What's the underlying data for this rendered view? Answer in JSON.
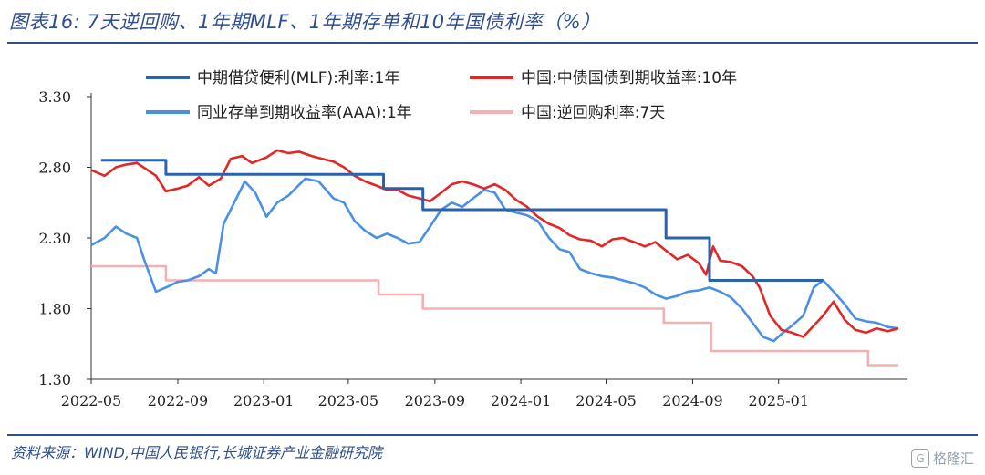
{
  "title": "图表16:  7天逆回购、1年期MLF、1年期存单和10年国债利率（%）",
  "source": "资料来源：WIND,中国人民银行,长城证券产业金融研究院",
  "watermark": "格隆汇",
  "chart_data": {
    "type": "line",
    "ylim": [
      1.3,
      3.3
    ],
    "yticks": [
      "1.30",
      "1.80",
      "2.30",
      "2.80",
      "3.30"
    ],
    "xticks": [
      "2022-05",
      "2022-09",
      "2023-01",
      "2023-05",
      "2023-09",
      "2024-01",
      "2024-05",
      "2024-09",
      "2025-01"
    ],
    "x_range": [
      "2022-05-01",
      "2025-06-20"
    ],
    "legend": [
      {
        "name": "中期借贷便利(MLF):利率:1年",
        "color": "#2b62ad"
      },
      {
        "name": "中国:中债国债到期收益率:10年",
        "color": "#e32626"
      },
      {
        "name": "同业存单到期收益率(AAA):1年",
        "color": "#4a90e6"
      },
      {
        "name": "中国:逆回购利率:7天",
        "color": "#f2b1b1"
      }
    ],
    "series": [
      {
        "name": "中国:逆回购利率:7天",
        "color": "#f2b1b1",
        "width": 2.6,
        "step": true,
        "points": [
          [
            "2022-05-01",
            2.1
          ],
          [
            "2022-08-15",
            2.0
          ],
          [
            "2023-06-13",
            1.9
          ],
          [
            "2023-08-15",
            1.8
          ],
          [
            "2024-07-22",
            1.7
          ],
          [
            "2024-09-27",
            1.5
          ],
          [
            "2025-05-08",
            1.4
          ],
          [
            "2025-06-20",
            1.4
          ]
        ]
      },
      {
        "name": "同业存单到期收益率(AAA):1年",
        "color": "#4a90e6",
        "width": 2.6,
        "step": false,
        "points": [
          [
            "2022-05-01",
            2.25
          ],
          [
            "2022-05-20",
            2.3
          ],
          [
            "2022-06-05",
            2.38
          ],
          [
            "2022-06-20",
            2.33
          ],
          [
            "2022-07-05",
            2.3
          ],
          [
            "2022-07-15",
            2.15
          ],
          [
            "2022-08-01",
            1.92
          ],
          [
            "2022-08-15",
            1.95
          ],
          [
            "2022-09-01",
            1.99
          ],
          [
            "2022-09-15",
            2.0
          ],
          [
            "2022-10-01",
            2.03
          ],
          [
            "2022-10-15",
            2.08
          ],
          [
            "2022-10-25",
            2.05
          ],
          [
            "2022-11-05",
            2.4
          ],
          [
            "2022-11-20",
            2.55
          ],
          [
            "2022-12-05",
            2.7
          ],
          [
            "2022-12-20",
            2.62
          ],
          [
            "2023-01-05",
            2.45
          ],
          [
            "2023-01-20",
            2.55
          ],
          [
            "2023-02-05",
            2.6
          ],
          [
            "2023-03-01",
            2.72
          ],
          [
            "2023-03-20",
            2.7
          ],
          [
            "2023-04-10",
            2.58
          ],
          [
            "2023-04-25",
            2.55
          ],
          [
            "2023-05-10",
            2.42
          ],
          [
            "2023-05-25",
            2.35
          ],
          [
            "2023-06-10",
            2.3
          ],
          [
            "2023-06-25",
            2.33
          ],
          [
            "2023-07-10",
            2.3
          ],
          [
            "2023-07-25",
            2.26
          ],
          [
            "2023-08-10",
            2.27
          ],
          [
            "2023-08-25",
            2.38
          ],
          [
            "2023-09-10",
            2.5
          ],
          [
            "2023-09-25",
            2.55
          ],
          [
            "2023-10-10",
            2.52
          ],
          [
            "2023-10-25",
            2.58
          ],
          [
            "2023-11-10",
            2.64
          ],
          [
            "2023-11-25",
            2.62
          ],
          [
            "2023-12-10",
            2.5
          ],
          [
            "2023-12-25",
            2.48
          ],
          [
            "2024-01-10",
            2.46
          ],
          [
            "2024-01-25",
            2.42
          ],
          [
            "2024-02-10",
            2.3
          ],
          [
            "2024-02-25",
            2.22
          ],
          [
            "2024-03-10",
            2.2
          ],
          [
            "2024-03-25",
            2.08
          ],
          [
            "2024-04-10",
            2.05
          ],
          [
            "2024-04-25",
            2.03
          ],
          [
            "2024-05-10",
            2.02
          ],
          [
            "2024-05-25",
            2.0
          ],
          [
            "2024-06-10",
            1.98
          ],
          [
            "2024-06-25",
            1.95
          ],
          [
            "2024-07-10",
            1.9
          ],
          [
            "2024-07-25",
            1.87
          ],
          [
            "2024-08-10",
            1.89
          ],
          [
            "2024-08-25",
            1.92
          ],
          [
            "2024-09-10",
            1.93
          ],
          [
            "2024-09-25",
            1.95
          ],
          [
            "2024-10-10",
            1.92
          ],
          [
            "2024-10-25",
            1.88
          ],
          [
            "2024-11-10",
            1.8
          ],
          [
            "2024-11-25",
            1.7
          ],
          [
            "2024-12-10",
            1.6
          ],
          [
            "2024-12-25",
            1.57
          ],
          [
            "2025-01-05",
            1.62
          ],
          [
            "2025-01-20",
            1.68
          ],
          [
            "2025-02-05",
            1.75
          ],
          [
            "2025-02-20",
            1.95
          ],
          [
            "2025-03-05",
            2.0
          ],
          [
            "2025-03-20",
            1.92
          ],
          [
            "2025-04-05",
            1.83
          ],
          [
            "2025-04-20",
            1.73
          ],
          [
            "2025-05-05",
            1.71
          ],
          [
            "2025-05-20",
            1.7
          ],
          [
            "2025-06-05",
            1.67
          ],
          [
            "2025-06-20",
            1.66
          ]
        ]
      },
      {
        "name": "中国:中债国债到期收益率:10年",
        "color": "#e32626",
        "width": 2.6,
        "step": false,
        "points": [
          [
            "2022-05-01",
            2.78
          ],
          [
            "2022-05-20",
            2.74
          ],
          [
            "2022-06-05",
            2.8
          ],
          [
            "2022-06-20",
            2.82
          ],
          [
            "2022-07-05",
            2.83
          ],
          [
            "2022-07-20",
            2.78
          ],
          [
            "2022-08-01",
            2.74
          ],
          [
            "2022-08-15",
            2.63
          ],
          [
            "2022-09-01",
            2.65
          ],
          [
            "2022-09-15",
            2.67
          ],
          [
            "2022-10-01",
            2.73
          ],
          [
            "2022-10-15",
            2.67
          ],
          [
            "2022-11-01",
            2.72
          ],
          [
            "2022-11-15",
            2.86
          ],
          [
            "2022-12-01",
            2.88
          ],
          [
            "2022-12-15",
            2.83
          ],
          [
            "2023-01-05",
            2.87
          ],
          [
            "2023-01-20",
            2.92
          ],
          [
            "2023-02-05",
            2.9
          ],
          [
            "2023-02-20",
            2.91
          ],
          [
            "2023-03-10",
            2.88
          ],
          [
            "2023-03-25",
            2.86
          ],
          [
            "2023-04-10",
            2.84
          ],
          [
            "2023-04-25",
            2.8
          ],
          [
            "2023-05-10",
            2.74
          ],
          [
            "2023-05-25",
            2.7
          ],
          [
            "2023-06-10",
            2.67
          ],
          [
            "2023-06-25",
            2.64
          ],
          [
            "2023-07-10",
            2.64
          ],
          [
            "2023-07-25",
            2.6
          ],
          [
            "2023-08-10",
            2.58
          ],
          [
            "2023-08-25",
            2.56
          ],
          [
            "2023-09-10",
            2.62
          ],
          [
            "2023-09-25",
            2.68
          ],
          [
            "2023-10-10",
            2.7
          ],
          [
            "2023-10-25",
            2.68
          ],
          [
            "2023-11-10",
            2.65
          ],
          [
            "2023-11-25",
            2.68
          ],
          [
            "2023-12-10",
            2.64
          ],
          [
            "2023-12-25",
            2.57
          ],
          [
            "2024-01-10",
            2.52
          ],
          [
            "2024-01-25",
            2.45
          ],
          [
            "2024-02-10",
            2.4
          ],
          [
            "2024-02-25",
            2.37
          ],
          [
            "2024-03-10",
            2.32
          ],
          [
            "2024-03-25",
            2.29
          ],
          [
            "2024-04-10",
            2.28
          ],
          [
            "2024-04-25",
            2.24
          ],
          [
            "2024-05-10",
            2.29
          ],
          [
            "2024-05-25",
            2.3
          ],
          [
            "2024-06-10",
            2.27
          ],
          [
            "2024-06-25",
            2.24
          ],
          [
            "2024-07-10",
            2.27
          ],
          [
            "2024-07-25",
            2.21
          ],
          [
            "2024-08-10",
            2.15
          ],
          [
            "2024-08-25",
            2.18
          ],
          [
            "2024-09-10",
            2.12
          ],
          [
            "2024-09-20",
            2.04
          ],
          [
            "2024-09-30",
            2.24
          ],
          [
            "2024-10-10",
            2.14
          ],
          [
            "2024-10-25",
            2.13
          ],
          [
            "2024-11-10",
            2.1
          ],
          [
            "2024-11-25",
            2.03
          ],
          [
            "2024-12-05",
            1.95
          ],
          [
            "2024-12-20",
            1.75
          ],
          [
            "2025-01-05",
            1.65
          ],
          [
            "2025-01-20",
            1.63
          ],
          [
            "2025-02-05",
            1.6
          ],
          [
            "2025-02-20",
            1.68
          ],
          [
            "2025-03-05",
            1.75
          ],
          [
            "2025-03-20",
            1.85
          ],
          [
            "2025-04-05",
            1.72
          ],
          [
            "2025-04-20",
            1.65
          ],
          [
            "2025-05-05",
            1.63
          ],
          [
            "2025-05-20",
            1.66
          ],
          [
            "2025-06-05",
            1.64
          ],
          [
            "2025-06-20",
            1.66
          ]
        ]
      },
      {
        "name": "中期借贷便利(MLF):利率:1年",
        "color": "#2b62ad",
        "width": 3,
        "step": true,
        "points": [
          [
            "2022-05-15",
            2.85
          ],
          [
            "2022-08-15",
            2.75
          ],
          [
            "2023-06-20",
            2.65
          ],
          [
            "2023-08-15",
            2.5
          ],
          [
            "2024-07-25",
            2.3
          ],
          [
            "2024-09-25",
            2.0
          ],
          [
            "2025-03-05",
            2.0
          ]
        ]
      }
    ]
  }
}
